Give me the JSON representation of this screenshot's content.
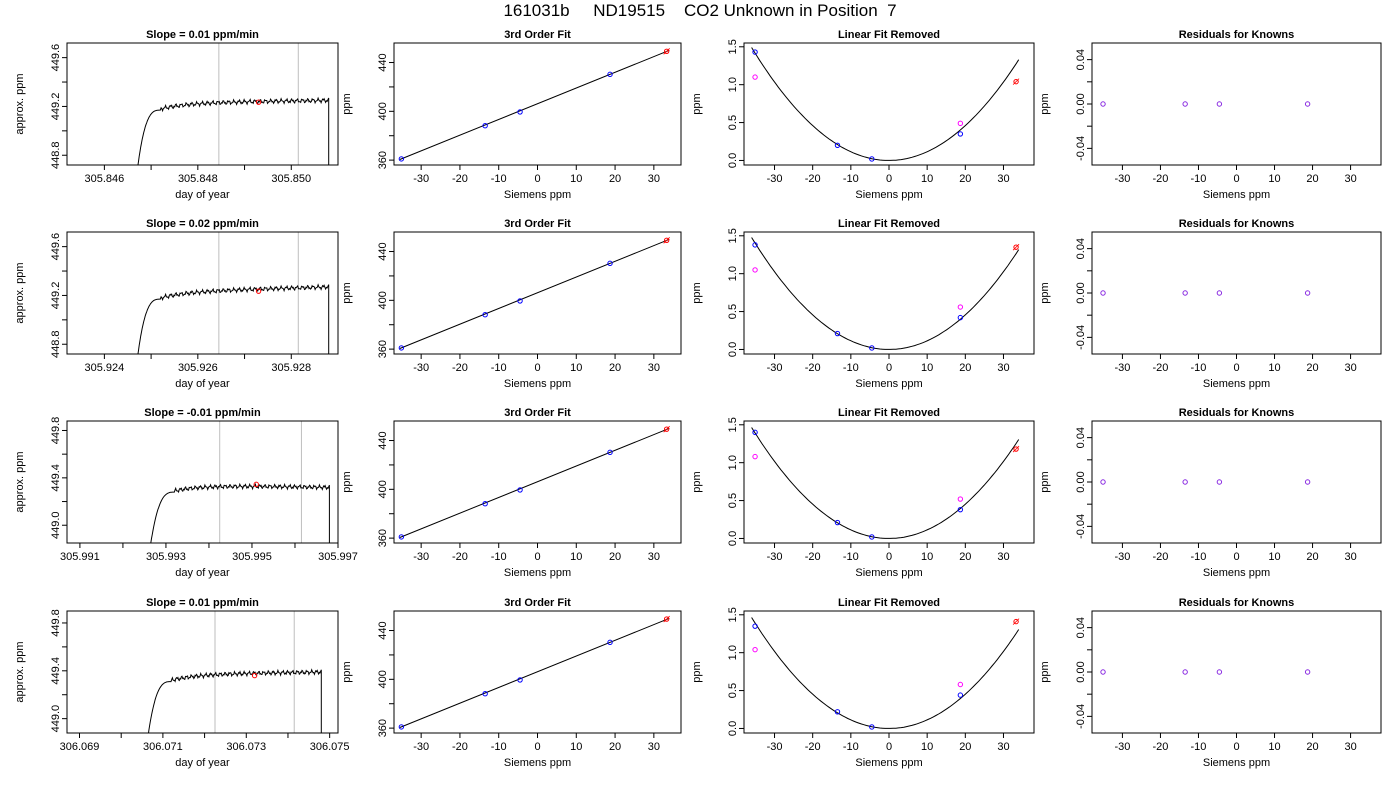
{
  "figure": {
    "title": "161031b     ND19515    CO2 Unknown in Position  7"
  },
  "colors": {
    "trace": "#000000",
    "marker_red": "#ff0000",
    "marker_blue": "#0000ff",
    "marker_magenta": "#ff00ff",
    "marker_purple": "#8a2be2",
    "window_line": "#bebebe"
  },
  "chart_data": [
    {
      "type": "line",
      "row": 1,
      "col": 1,
      "title": "Slope =  0.01  ppm/min",
      "xlabel": "day of year",
      "ylabel": "approx. ppm",
      "xlim": [
        305.8452,
        305.851
      ],
      "ylim": [
        448.72,
        449.72
      ],
      "xticks": [
        305.846,
        305.848,
        305.85
      ],
      "xtick_labels": [
        "305.846",
        "305.848",
        "305.850"
      ],
      "xticks_minor": [
        305.847,
        305.849
      ],
      "yticks": [
        448.8,
        449.2,
        449.6
      ],
      "ytick_labels": [
        "448.8",
        "449.2",
        "449.6"
      ],
      "yticks_minor": [
        449.0,
        449.4
      ],
      "trace": {
        "start": 305.8466,
        "end": 305.8508,
        "plateau": 449.23,
        "low": 448.3,
        "rise_end": 305.8472,
        "drift": 0.01
      },
      "window": [
        305.84845,
        305.85015
      ],
      "marker": {
        "x": 305.8493,
        "y": 449.235
      }
    },
    {
      "type": "scatter",
      "row": 1,
      "col": 2,
      "title": "3rd Order Fit",
      "xlabel": "Siemens ppm",
      "ylabel": "ppm",
      "xlim": [
        -37,
        37
      ],
      "ylim": [
        356,
        456
      ],
      "xticks": [
        -30,
        -20,
        -10,
        0,
        10,
        20,
        30
      ],
      "xtick_labels": [
        "-30",
        "-20",
        "-10",
        "0",
        "10",
        "20",
        "30"
      ],
      "yticks": [
        360,
        400,
        440
      ],
      "ytick_labels": [
        "360",
        "400",
        "440"
      ],
      "yticks_minor": [
        380,
        420
      ],
      "knowns": [
        {
          "x": -35.1,
          "y": 361.0
        },
        {
          "x": -13.5,
          "y": 388.2
        },
        {
          "x": -4.5,
          "y": 399.5
        },
        {
          "x": 18.7,
          "y": 430.3
        }
      ],
      "unknown": {
        "x": 33.3,
        "y": 449.2
      },
      "fit_line": [
        [
          -35.5,
          360.5
        ],
        [
          34.0,
          450.0
        ]
      ]
    },
    {
      "type": "scatter",
      "row": 1,
      "col": 3,
      "title": "Linear Fit Removed",
      "xlabel": "Siemens ppm",
      "ylabel": "ppm",
      "xlim": [
        -38,
        38
      ],
      "ylim": [
        -0.06,
        1.55
      ],
      "xticks": [
        -30,
        -20,
        -10,
        0,
        10,
        20,
        30
      ],
      "xtick_labels": [
        "-30",
        "-20",
        "-10",
        "0",
        "10",
        "20",
        "30"
      ],
      "yticks": [
        0.0,
        0.5,
        1.0,
        1.5
      ],
      "ytick_labels": [
        "0.0",
        "0.5",
        "1.0",
        "1.5"
      ],
      "curve_coef": 0.00115,
      "curve_xrange": [
        -36,
        34
      ],
      "knowns": [
        {
          "x": -35.1,
          "y": 1.43
        },
        {
          "x": -13.5,
          "y": 0.2
        },
        {
          "x": -4.5,
          "y": 0.02
        },
        {
          "x": 18.7,
          "y": 0.35
        }
      ],
      "magenta": [
        {
          "x": -35.1,
          "y": 1.1
        },
        {
          "x": 18.7,
          "y": 0.49
        }
      ],
      "unknown": {
        "x": 33.3,
        "y": 1.04
      }
    },
    {
      "type": "scatter",
      "row": 1,
      "col": 4,
      "title": "Residuals for Knowns",
      "xlabel": "Siemens ppm",
      "ylabel": "ppm",
      "xlim": [
        -38,
        38
      ],
      "ylim": [
        -0.055,
        0.055
      ],
      "xticks": [
        -30,
        -20,
        -10,
        0,
        10,
        20,
        30
      ],
      "xtick_labels": [
        "-30",
        "-20",
        "-10",
        "0",
        "10",
        "20",
        "30"
      ],
      "yticks": [
        -0.04,
        0.0,
        0.04
      ],
      "ytick_labels": [
        "-0.04",
        "0.00",
        "0.04"
      ],
      "yticks_minor": [
        -0.02,
        0.02
      ],
      "points": [
        {
          "x": -35.1,
          "y": 0.0
        },
        {
          "x": -13.5,
          "y": 0.0
        },
        {
          "x": -4.5,
          "y": 0.0
        },
        {
          "x": 18.7,
          "y": 0.0
        }
      ]
    },
    {
      "type": "line",
      "row": 2,
      "col": 1,
      "title": "Slope =  0.02  ppm/min",
      "xlabel": "day of year",
      "ylabel": "approx. ppm",
      "xlim": [
        305.9232,
        305.929
      ],
      "ylim": [
        448.72,
        449.72
      ],
      "xticks": [
        305.924,
        305.926,
        305.928
      ],
      "xtick_labels": [
        "305.924",
        "305.926",
        "305.928"
      ],
      "xticks_minor": [
        305.925,
        305.927
      ],
      "yticks": [
        448.8,
        449.2,
        449.6
      ],
      "ytick_labels": [
        "448.8",
        "449.2",
        "449.6"
      ],
      "yticks_minor": [
        449.0,
        449.4
      ],
      "trace": {
        "start": 305.9246,
        "end": 305.9288,
        "plateau": 449.23,
        "low": 448.3,
        "rise_end": 305.9252,
        "drift": 0.02
      },
      "window": [
        305.92645,
        305.92815
      ],
      "marker": {
        "x": 305.9273,
        "y": 449.235
      }
    },
    {
      "type": "scatter",
      "row": 2,
      "col": 2,
      "title": "3rd Order Fit",
      "xlabel": "Siemens ppm",
      "ylabel": "ppm",
      "xlim": [
        -37,
        37
      ],
      "ylim": [
        356,
        456
      ],
      "xticks": [
        -30,
        -20,
        -10,
        0,
        10,
        20,
        30
      ],
      "xtick_labels": [
        "-30",
        "-20",
        "-10",
        "0",
        "10",
        "20",
        "30"
      ],
      "yticks": [
        360,
        400,
        440
      ],
      "ytick_labels": [
        "360",
        "400",
        "440"
      ],
      "yticks_minor": [
        380,
        420
      ],
      "knowns": [
        {
          "x": -35.1,
          "y": 361.0
        },
        {
          "x": -13.5,
          "y": 388.2
        },
        {
          "x": -4.5,
          "y": 399.5
        },
        {
          "x": 18.7,
          "y": 430.3
        }
      ],
      "unknown": {
        "x": 33.3,
        "y": 449.2
      },
      "fit_line": [
        [
          -35.5,
          360.5
        ],
        [
          34.0,
          450.0
        ]
      ]
    },
    {
      "type": "scatter",
      "row": 2,
      "col": 3,
      "title": "Linear Fit Removed",
      "xlabel": "Siemens ppm",
      "ylabel": "ppm",
      "xlim": [
        -38,
        38
      ],
      "ylim": [
        -0.06,
        1.55
      ],
      "xticks": [
        -30,
        -20,
        -10,
        0,
        10,
        20,
        30
      ],
      "xtick_labels": [
        "-30",
        "-20",
        "-10",
        "0",
        "10",
        "20",
        "30"
      ],
      "yticks": [
        0.0,
        0.5,
        1.0,
        1.5
      ],
      "ytick_labels": [
        "0.0",
        "0.5",
        "1.0",
        "1.5"
      ],
      "curve_coef": 0.00114,
      "curve_xrange": [
        -36,
        34
      ],
      "knowns": [
        {
          "x": -35.1,
          "y": 1.38
        },
        {
          "x": -13.5,
          "y": 0.21
        },
        {
          "x": -4.5,
          "y": 0.02
        },
        {
          "x": 18.7,
          "y": 0.42
        }
      ],
      "magenta": [
        {
          "x": -35.1,
          "y": 1.05
        },
        {
          "x": 18.7,
          "y": 0.56
        }
      ],
      "unknown": {
        "x": 33.3,
        "y": 1.35
      }
    },
    {
      "type": "scatter",
      "row": 2,
      "col": 4,
      "title": "Residuals for Knowns",
      "xlabel": "Siemens ppm",
      "ylabel": "ppm",
      "xlim": [
        -38,
        38
      ],
      "ylim": [
        -0.055,
        0.055
      ],
      "xticks": [
        -30,
        -20,
        -10,
        0,
        10,
        20,
        30
      ],
      "xtick_labels": [
        "-30",
        "-20",
        "-10",
        "0",
        "10",
        "20",
        "30"
      ],
      "yticks": [
        -0.04,
        0.0,
        0.04
      ],
      "ytick_labels": [
        "-0.04",
        "0.00",
        "0.04"
      ],
      "yticks_minor": [
        -0.02,
        0.02
      ],
      "points": [
        {
          "x": -35.1,
          "y": 0.0
        },
        {
          "x": -13.5,
          "y": 0.0
        },
        {
          "x": -4.5,
          "y": 0.0
        },
        {
          "x": 18.7,
          "y": 0.0
        }
      ]
    },
    {
      "type": "line",
      "row": 3,
      "col": 1,
      "title": "Slope =  -0.01  ppm/min",
      "xlabel": "day of year",
      "ylabel": "approx. ppm",
      "xlim": [
        305.9907,
        305.997
      ],
      "ylim": [
        448.85,
        449.88
      ],
      "xticks": [
        305.991,
        305.993,
        305.995,
        305.997
      ],
      "xtick_labels": [
        "305.991",
        "305.993",
        "305.995",
        "305.997"
      ],
      "xticks_minor": [
        305.992,
        305.994,
        305.996
      ],
      "yticks": [
        449.0,
        449.4,
        449.8
      ],
      "ytick_labels": [
        "449.0",
        "449.4",
        "449.8"
      ],
      "yticks_minor": [
        449.2,
        449.6
      ],
      "trace": {
        "start": 305.9925,
        "end": 305.9968,
        "plateau": 449.34,
        "low": 448.4,
        "rise_end": 305.9932,
        "drift": -0.01
      },
      "window": [
        305.99425,
        305.99615
      ],
      "marker": {
        "x": 305.9951,
        "y": 449.345
      }
    },
    {
      "type": "scatter",
      "row": 3,
      "col": 2,
      "title": "3rd Order Fit",
      "xlabel": "Siemens ppm",
      "ylabel": "ppm",
      "xlim": [
        -37,
        37
      ],
      "ylim": [
        356,
        456
      ],
      "xticks": [
        -30,
        -20,
        -10,
        0,
        10,
        20,
        30
      ],
      "xtick_labels": [
        "-30",
        "-20",
        "-10",
        "0",
        "10",
        "20",
        "30"
      ],
      "yticks": [
        360,
        400,
        440
      ],
      "ytick_labels": [
        "360",
        "400",
        "440"
      ],
      "yticks_minor": [
        380,
        420
      ],
      "knowns": [
        {
          "x": -35.1,
          "y": 361.0
        },
        {
          "x": -13.5,
          "y": 388.2
        },
        {
          "x": -4.5,
          "y": 399.5
        },
        {
          "x": 18.7,
          "y": 430.3
        }
      ],
      "unknown": {
        "x": 33.3,
        "y": 449.3
      },
      "fit_line": [
        [
          -35.5,
          360.5
        ],
        [
          34.0,
          450.0
        ]
      ]
    },
    {
      "type": "scatter",
      "row": 3,
      "col": 3,
      "title": "Linear Fit Removed",
      "xlabel": "Siemens ppm",
      "ylabel": "ppm",
      "xlim": [
        -38,
        38
      ],
      "ylim": [
        -0.06,
        1.55
      ],
      "xticks": [
        -30,
        -20,
        -10,
        0,
        10,
        20,
        30
      ],
      "xtick_labels": [
        "-30",
        "-20",
        "-10",
        "0",
        "10",
        "20",
        "30"
      ],
      "yticks": [
        0.0,
        0.5,
        1.0,
        1.5
      ],
      "ytick_labels": [
        "0.0",
        "0.5",
        "1.0",
        "1.5"
      ],
      "curve_coef": 0.00113,
      "curve_xrange": [
        -36,
        34
      ],
      "knowns": [
        {
          "x": -35.1,
          "y": 1.4
        },
        {
          "x": -13.5,
          "y": 0.21
        },
        {
          "x": -4.5,
          "y": 0.02
        },
        {
          "x": 18.7,
          "y": 0.38
        }
      ],
      "magenta": [
        {
          "x": -35.1,
          "y": 1.08
        },
        {
          "x": 18.7,
          "y": 0.52
        }
      ],
      "unknown": {
        "x": 33.3,
        "y": 1.18
      }
    },
    {
      "type": "scatter",
      "row": 3,
      "col": 4,
      "title": "Residuals for Knowns",
      "xlabel": "Siemens ppm",
      "ylabel": "ppm",
      "xlim": [
        -38,
        38
      ],
      "ylim": [
        -0.055,
        0.055
      ],
      "xticks": [
        -30,
        -20,
        -10,
        0,
        10,
        20,
        30
      ],
      "xtick_labels": [
        "-30",
        "-20",
        "-10",
        "0",
        "10",
        "20",
        "30"
      ],
      "yticks": [
        -0.04,
        0.0,
        0.04
      ],
      "ytick_labels": [
        "-0.04",
        "0.00",
        "0.04"
      ],
      "yticks_minor": [
        -0.02,
        0.02
      ],
      "points": [
        {
          "x": -35.1,
          "y": 0.0
        },
        {
          "x": -13.5,
          "y": 0.0
        },
        {
          "x": -4.5,
          "y": 0.0
        },
        {
          "x": 18.7,
          "y": 0.0
        }
      ]
    },
    {
      "type": "line",
      "row": 4,
      "col": 1,
      "title": "Slope =  0.01  ppm/min",
      "xlabel": "day of year",
      "ylabel": "approx. ppm",
      "xlim": [
        306.0687,
        306.0752
      ],
      "ylim": [
        448.88,
        449.9
      ],
      "xticks": [
        306.069,
        306.071,
        306.073,
        306.075
      ],
      "xtick_labels": [
        "306.069",
        "306.071",
        "306.073",
        "306.075"
      ],
      "xticks_minor": [
        306.07,
        306.072,
        306.074
      ],
      "yticks": [
        449.0,
        449.4,
        449.8
      ],
      "ytick_labels": [
        "449.0",
        "449.4",
        "449.8"
      ],
      "yticks_minor": [
        449.2,
        449.6
      ],
      "trace": {
        "start": 306.0705,
        "end": 306.0748,
        "plateau": 449.37,
        "low": 448.4,
        "rise_end": 306.0712,
        "drift": 0.01
      },
      "window": [
        306.07225,
        306.07415
      ],
      "marker": {
        "x": 306.0732,
        "y": 449.36
      }
    },
    {
      "type": "scatter",
      "row": 4,
      "col": 2,
      "title": "3rd Order Fit",
      "xlabel": "Siemens ppm",
      "ylabel": "ppm",
      "xlim": [
        -37,
        37
      ],
      "ylim": [
        356,
        456
      ],
      "xticks": [
        -30,
        -20,
        -10,
        0,
        10,
        20,
        30
      ],
      "xtick_labels": [
        "-30",
        "-20",
        "-10",
        "0",
        "10",
        "20",
        "30"
      ],
      "yticks": [
        360,
        400,
        440
      ],
      "ytick_labels": [
        "360",
        "400",
        "440"
      ],
      "yticks_minor": [
        380,
        420
      ],
      "knowns": [
        {
          "x": -35.1,
          "y": 361.0
        },
        {
          "x": -13.5,
          "y": 388.2
        },
        {
          "x": -4.5,
          "y": 399.5
        },
        {
          "x": 18.7,
          "y": 430.3
        }
      ],
      "unknown": {
        "x": 33.3,
        "y": 449.4
      },
      "fit_line": [
        [
          -35.5,
          360.5
        ],
        [
          34.0,
          450.0
        ]
      ]
    },
    {
      "type": "scatter",
      "row": 4,
      "col": 3,
      "title": "Linear Fit Removed",
      "xlabel": "Siemens ppm",
      "ylabel": "ppm",
      "xlim": [
        -38,
        38
      ],
      "ylim": [
        -0.06,
        1.55
      ],
      "xticks": [
        -30,
        -20,
        -10,
        0,
        10,
        20,
        30
      ],
      "xtick_labels": [
        "-30",
        "-20",
        "-10",
        "0",
        "10",
        "20",
        "30"
      ],
      "yticks": [
        0.0,
        0.5,
        1.0,
        1.5
      ],
      "ytick_labels": [
        "0.0",
        "0.5",
        "1.0",
        "1.5"
      ],
      "curve_coef": 0.00113,
      "curve_xrange": [
        -36,
        34
      ],
      "knowns": [
        {
          "x": -35.1,
          "y": 1.35
        },
        {
          "x": -13.5,
          "y": 0.22
        },
        {
          "x": -4.5,
          "y": 0.02
        },
        {
          "x": 18.7,
          "y": 0.44
        }
      ],
      "magenta": [
        {
          "x": -35.1,
          "y": 1.04
        },
        {
          "x": 18.7,
          "y": 0.58
        }
      ],
      "unknown": {
        "x": 33.3,
        "y": 1.41
      }
    },
    {
      "type": "scatter",
      "row": 4,
      "col": 4,
      "title": "Residuals for Knowns",
      "xlabel": "Siemens ppm",
      "ylabel": "ppm",
      "xlim": [
        -38,
        38
      ],
      "ylim": [
        -0.055,
        0.055
      ],
      "xticks": [
        -30,
        -20,
        -10,
        0,
        10,
        20,
        30
      ],
      "xtick_labels": [
        "-30",
        "-20",
        "-10",
        "0",
        "10",
        "20",
        "30"
      ],
      "yticks": [
        -0.04,
        0.0,
        0.04
      ],
      "ytick_labels": [
        "-0.04",
        "0.00",
        "0.04"
      ],
      "yticks_minor": [
        -0.02,
        0.02
      ],
      "points": [
        {
          "x": -35.1,
          "y": 0.0
        },
        {
          "x": -13.5,
          "y": 0.0
        },
        {
          "x": -4.5,
          "y": 0.0
        },
        {
          "x": 18.7,
          "y": 0.0
        }
      ]
    }
  ]
}
